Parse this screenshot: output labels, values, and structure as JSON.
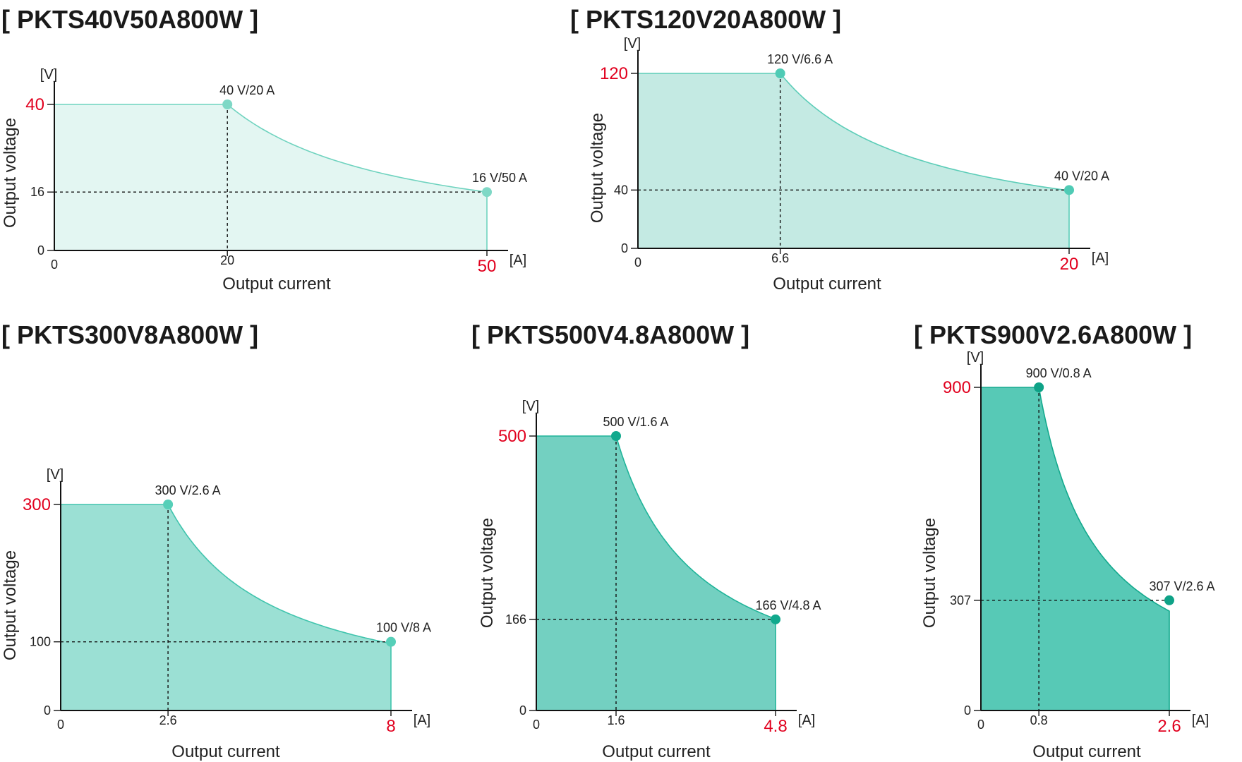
{
  "chart_data": [
    {
      "type": "area",
      "title": "[ PKTS40V50A800W ]",
      "xlabel": "Output current",
      "ylabel": "Output voltage",
      "x_unit": "[A]",
      "y_unit": "[V]",
      "xlim": [
        0,
        50
      ],
      "ylim": [
        0,
        40
      ],
      "x_ticks": [
        "0",
        "20",
        "50"
      ],
      "y_ticks": [
        "0",
        "16",
        "40"
      ],
      "highlight_ticks": [
        "50",
        "40"
      ],
      "fill_color": "#e3f6f2",
      "line_color": "#6fd3bf",
      "marker_color": "#7fd8c6",
      "power_w": 800,
      "points": [
        {
          "x": 20,
          "y": 40,
          "label": "40 V/20 A"
        },
        {
          "x": 50,
          "y": 16,
          "label": "16 V/50 A"
        }
      ]
    },
    {
      "type": "area",
      "title": "[ PKTS120V20A800W ]",
      "xlabel": "Output current",
      "ylabel": "Output voltage",
      "x_unit": "[A]",
      "y_unit": "[V]",
      "xlim": [
        0,
        20
      ],
      "ylim": [
        0,
        120
      ],
      "x_ticks": [
        "0",
        "6.6",
        "20"
      ],
      "y_ticks": [
        "0",
        "40",
        "120"
      ],
      "highlight_ticks": [
        "20",
        "120"
      ],
      "fill_color": "#c4eae3",
      "line_color": "#5ccdb8",
      "marker_color": "#4fcbb5",
      "power_w": 800,
      "points": [
        {
          "x": 6.6,
          "y": 120,
          "label": "120 V/6.6 A"
        },
        {
          "x": 20,
          "y": 40,
          "label": "40 V/20 A"
        }
      ]
    },
    {
      "type": "area",
      "title": "[ PKTS300V8A800W ]",
      "xlabel": "Output current",
      "ylabel": "Output voltage",
      "x_unit": "[A]",
      "y_unit": "[V]",
      "xlim": [
        0,
        8
      ],
      "ylim": [
        0,
        300
      ],
      "x_ticks": [
        "0",
        "2.6",
        "8"
      ],
      "y_ticks": [
        "0",
        "100",
        "300"
      ],
      "highlight_ticks": [
        "8",
        "300"
      ],
      "fill_color": "#9be0d4",
      "line_color": "#40c4ad",
      "marker_color": "#56cfb8",
      "power_w": 800,
      "points": [
        {
          "x": 2.6,
          "y": 300,
          "label": "300 V/2.6 A"
        },
        {
          "x": 8,
          "y": 100,
          "label": "100 V/8 A"
        }
      ]
    },
    {
      "type": "area",
      "title": "[ PKTS500V4.8A800W ]",
      "xlabel": "Output current",
      "ylabel": "Output voltage",
      "x_unit": "[A]",
      "y_unit": "[V]",
      "xlim": [
        0,
        4.8
      ],
      "ylim": [
        0,
        500
      ],
      "x_ticks": [
        "0",
        "1.6",
        "4.8"
      ],
      "y_ticks": [
        "0",
        "166",
        "500"
      ],
      "highlight_ticks": [
        "4.8",
        "500"
      ],
      "fill_color": "#73d0c1",
      "line_color": "#1fb499",
      "marker_color": "#11a98d",
      "power_w": 800,
      "points": [
        {
          "x": 1.6,
          "y": 500,
          "label": "500 V/1.6 A"
        },
        {
          "x": 4.8,
          "y": 166,
          "label": "166 V/4.8 A"
        }
      ]
    },
    {
      "type": "area",
      "title": "[ PKTS900V2.6A800W ]",
      "xlabel": "Output current",
      "ylabel": "Output voltage",
      "x_unit": "[A]",
      "y_unit": "[V]",
      "xlim": [
        0,
        2.6
      ],
      "ylim": [
        0,
        900
      ],
      "x_ticks": [
        "0",
        "0.8",
        "2.6"
      ],
      "y_ticks": [
        "0",
        "307",
        "900"
      ],
      "highlight_ticks": [
        "2.6",
        "900"
      ],
      "fill_color": "#57c9b6",
      "line_color": "#13a98d",
      "marker_color": "#0ea287",
      "power_w": 800,
      "points": [
        {
          "x": 0.8,
          "y": 900,
          "label": "900 V/0.8 A"
        },
        {
          "x": 2.6,
          "y": 307,
          "label": "307 V/2.6 A"
        }
      ]
    }
  ]
}
